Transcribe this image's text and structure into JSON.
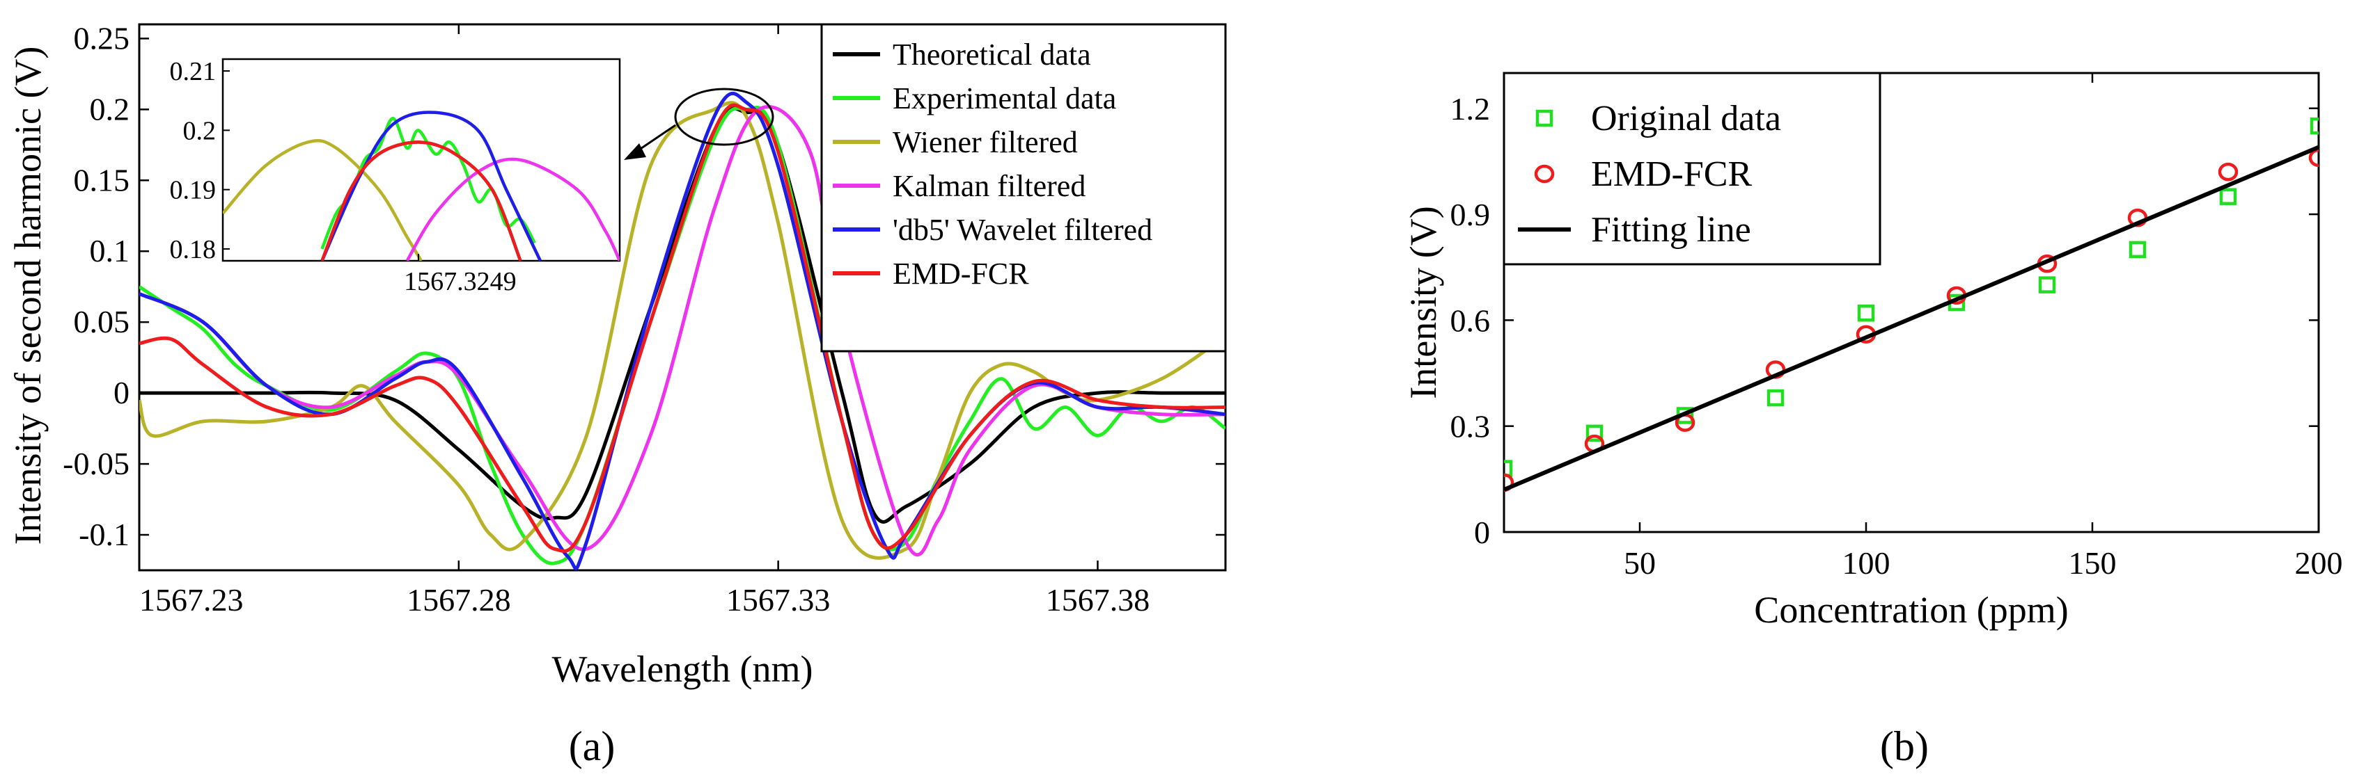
{
  "chart_data": [
    {
      "panel": "(a)",
      "type": "line",
      "xlabel": "Wavelength (nm)",
      "ylabel": "Intensity of second harmonic (V)",
      "xlim": [
        1567.23,
        1567.4
      ],
      "ylim": [
        -0.125,
        0.26
      ],
      "xticks": [
        1567.23,
        1567.28,
        1567.33,
        1567.38
      ],
      "xtick_labels": [
        "1567.23",
        "1567.28",
        "1567.33",
        "1567.38"
      ],
      "yticks": [
        -0.1,
        -0.05,
        0,
        0.05,
        0.1,
        0.15,
        0.2,
        0.25
      ],
      "ytick_labels": [
        "-0.1",
        "-0.05",
        "0",
        "0.05",
        "0.1",
        "0.15",
        "0.2",
        "0.25"
      ],
      "legend_position": "top-right",
      "series": [
        {
          "name": "Theoretical data",
          "color": "#000000",
          "x": [
            1567.23,
            1567.24,
            1567.25,
            1567.26,
            1567.27,
            1567.28,
            1567.29,
            1567.295,
            1567.3,
            1567.31,
            1567.32,
            1567.3249,
            1567.33,
            1567.34,
            1567.345,
            1567.35,
            1567.36,
            1567.37,
            1567.38,
            1567.39,
            1567.4
          ],
          "y": [
            0,
            0,
            0,
            0,
            -0.005,
            -0.04,
            -0.08,
            -0.088,
            -0.07,
            0.06,
            0.185,
            0.198,
            0.175,
            0,
            -0.085,
            -0.08,
            -0.05,
            -0.01,
            0,
            0,
            0
          ]
        },
        {
          "name": "Experimental data",
          "color": "#22ee22",
          "x": [
            1567.23,
            1567.235,
            1567.24,
            1567.245,
            1567.25,
            1567.26,
            1567.27,
            1567.275,
            1567.28,
            1567.285,
            1567.29,
            1567.295,
            1567.3,
            1567.31,
            1567.32,
            1567.3249,
            1567.33,
            1567.34,
            1567.345,
            1567.35,
            1567.355,
            1567.36,
            1567.365,
            1567.37,
            1567.375,
            1567.38,
            1567.385,
            1567.39,
            1567.395,
            1567.4
          ],
          "y": [
            0.075,
            0.06,
            0.045,
            0.02,
            0.005,
            -0.012,
            0.015,
            0.028,
            0.01,
            -0.05,
            -0.1,
            -0.12,
            -0.09,
            0.05,
            0.18,
            0.2,
            0.175,
            -0.02,
            -0.1,
            -0.105,
            -0.06,
            -0.02,
            0.01,
            -0.025,
            -0.01,
            -0.03,
            -0.01,
            -0.02,
            -0.01,
            -0.025
          ]
        },
        {
          "name": "Wiener filtered",
          "color": "#b8b228",
          "x": [
            1567.23,
            1567.232,
            1567.24,
            1567.25,
            1567.26,
            1567.265,
            1567.27,
            1567.28,
            1567.285,
            1567.29,
            1567.3,
            1567.31,
            1567.32,
            1567.325,
            1567.33,
            1567.34,
            1567.35,
            1567.355,
            1567.36,
            1567.365,
            1567.37,
            1567.375,
            1567.38,
            1567.39,
            1567.4
          ],
          "y": [
            -0.005,
            -0.03,
            -0.02,
            -0.02,
            -0.01,
            0.005,
            -0.02,
            -0.065,
            -0.1,
            -0.105,
            -0.03,
            0.16,
            0.2,
            0.195,
            0.12,
            -0.09,
            -0.11,
            -0.06,
            0.0,
            0.02,
            0.015,
            0.0,
            -0.005,
            0.01,
            0.04
          ]
        },
        {
          "name": "Kalman filtered",
          "color": "#ee33ee",
          "x": [
            1567.23,
            1567.24,
            1567.25,
            1567.26,
            1567.27,
            1567.275,
            1567.28,
            1567.29,
            1567.3,
            1567.31,
            1567.32,
            1567.327,
            1567.335,
            1567.34,
            1567.35,
            1567.355,
            1567.36,
            1567.37,
            1567.38,
            1567.39,
            1567.4
          ],
          "y": [
            0.07,
            0.05,
            0.005,
            -0.01,
            0.012,
            0.022,
            0.012,
            -0.055,
            -0.11,
            -0.03,
            0.13,
            0.2,
            0.17,
            0.05,
            -0.105,
            -0.09,
            -0.04,
            0.005,
            -0.01,
            -0.015,
            -0.015
          ]
        },
        {
          "name": "'db5' Wavelet filtered",
          "color": "#1e1ee8",
          "x": [
            1567.23,
            1567.24,
            1567.25,
            1567.26,
            1567.27,
            1567.275,
            1567.28,
            1567.29,
            1567.297,
            1567.3,
            1567.31,
            1567.32,
            1567.325,
            1567.33,
            1567.34,
            1567.347,
            1567.35,
            1567.36,
            1567.37,
            1567.38,
            1567.39,
            1567.4
          ],
          "y": [
            0.07,
            0.05,
            0.005,
            -0.015,
            0.01,
            0.022,
            0.015,
            -0.06,
            -0.115,
            -0.105,
            0.06,
            0.195,
            0.205,
            0.16,
            -0.02,
            -0.11,
            -0.1,
            -0.03,
            0.007,
            -0.01,
            -0.01,
            -0.015
          ]
        },
        {
          "name": "EMD-FCR",
          "color": "#ee1c1c",
          "x": [
            1567.23,
            1567.235,
            1567.24,
            1567.25,
            1567.26,
            1567.27,
            1567.275,
            1567.28,
            1567.29,
            1567.295,
            1567.3,
            1567.31,
            1567.32,
            1567.3249,
            1567.33,
            1567.34,
            1567.345,
            1567.35,
            1567.36,
            1567.37,
            1567.38,
            1567.39,
            1567.4
          ],
          "y": [
            0.035,
            0.038,
            0.02,
            -0.01,
            -0.015,
            0.005,
            0.01,
            -0.01,
            -0.08,
            -0.11,
            -0.09,
            0.05,
            0.185,
            0.2,
            0.17,
            -0.02,
            -0.1,
            -0.1,
            -0.03,
            0.008,
            -0.005,
            -0.01,
            -0.01
          ]
        }
      ],
      "inset": {
        "xlim": [
          1567.318,
          1567.332
        ],
        "ylim": [
          0.178,
          0.212
        ],
        "ytick_labels": [
          "0.18",
          "0.19",
          "0.2",
          "0.21"
        ],
        "yticks": [
          0.18,
          0.19,
          0.2,
          0.21
        ],
        "xtick_labels": [
          "1567.3249"
        ],
        "xticks": [
          1567.3249
        ],
        "series": [
          {
            "name": "Theoretical data",
            "color": "#000000",
            "x": [
              1567.3215,
              1567.3225,
              1567.3235,
              1567.3249,
              1567.3262,
              1567.3275,
              1567.3285
            ],
            "y": [
              0.178,
              0.19,
              0.196,
              0.198,
              0.196,
              0.19,
              0.178
            ]
          },
          {
            "name": "Experimental data",
            "color": "#22ee22",
            "x": [
              1567.3215,
              1567.322,
              1567.3225,
              1567.323,
              1567.3235,
              1567.324,
              1567.3245,
              1567.3249,
              1567.3255,
              1567.326,
              1567.3265,
              1567.327,
              1567.3275,
              1567.328,
              1567.3285,
              1567.329
            ],
            "y": [
              0.18,
              0.186,
              0.189,
              0.195,
              0.197,
              0.202,
              0.197,
              0.2,
              0.196,
              0.198,
              0.194,
              0.188,
              0.19,
              0.184,
              0.185,
              0.181
            ]
          },
          {
            "name": "Wiener filtered",
            "color": "#b8b228",
            "x": [
              1567.318,
              1567.3195,
              1567.321,
              1567.322,
              1567.3235,
              1567.3245,
              1567.325
            ],
            "y": [
              0.186,
              0.194,
              0.198,
              0.197,
              0.19,
              0.182,
              0.178
            ]
          },
          {
            "name": "Kalman filtered",
            "color": "#ee33ee",
            "x": [
              1567.3245,
              1567.3255,
              1567.327,
              1567.3285,
              1567.3305,
              1567.3315,
              1567.332
            ],
            "y": [
              0.178,
              0.186,
              0.193,
              0.195,
              0.19,
              0.183,
              0.178
            ]
          },
          {
            "name": "'db5' Wavelet filtered",
            "color": "#1e1ee8",
            "x": [
              1567.3215,
              1567.3228,
              1567.324,
              1567.3255,
              1567.327,
              1567.328,
              1567.3292
            ],
            "y": [
              0.178,
              0.192,
              0.201,
              0.203,
              0.2,
              0.19,
              0.178
            ]
          },
          {
            "name": "EMD-FCR",
            "color": "#ee1c1c",
            "x": [
              1567.3215,
              1567.3225,
              1567.3235,
              1567.3249,
              1567.3262,
              1567.3275,
              1567.3285
            ],
            "y": [
              0.178,
              0.19,
              0.196,
              0.198,
              0.196,
              0.19,
              0.178
            ]
          }
        ]
      }
    },
    {
      "panel": "(b)",
      "type": "scatter",
      "xlabel": "Concentration (ppm)",
      "ylabel": "Intensity (V)",
      "xlim": [
        20,
        200
      ],
      "ylim": [
        0,
        1.3
      ],
      "xticks": [
        50,
        100,
        150,
        200
      ],
      "xtick_labels": [
        "50",
        "100",
        "150",
        "200"
      ],
      "yticks": [
        0,
        0.3,
        0.6,
        0.9,
        1.2
      ],
      "ytick_labels": [
        "0",
        "0.3",
        "0.6",
        "0.9",
        "1.2"
      ],
      "legend_position": "top-left",
      "series": [
        {
          "name": "Original data",
          "color": "#22dd22",
          "marker": "square",
          "x": [
            20,
            40,
            60,
            80,
            100,
            120,
            140,
            160,
            180,
            200
          ],
          "y": [
            0.18,
            0.28,
            0.33,
            0.38,
            0.62,
            0.65,
            0.7,
            0.8,
            0.95,
            1.15
          ]
        },
        {
          "name": "EMD-FCR",
          "color": "#ee1c1c",
          "marker": "circle",
          "x": [
            20,
            40,
            60,
            80,
            100,
            120,
            140,
            160,
            180,
            200
          ],
          "y": [
            0.14,
            0.25,
            0.31,
            0.46,
            0.56,
            0.67,
            0.76,
            0.89,
            1.02,
            1.06
          ]
        },
        {
          "name": "Fitting line",
          "color": "#000000",
          "marker": "line",
          "x": [
            20,
            200
          ],
          "y": [
            0.12,
            1.09
          ]
        }
      ]
    }
  ]
}
